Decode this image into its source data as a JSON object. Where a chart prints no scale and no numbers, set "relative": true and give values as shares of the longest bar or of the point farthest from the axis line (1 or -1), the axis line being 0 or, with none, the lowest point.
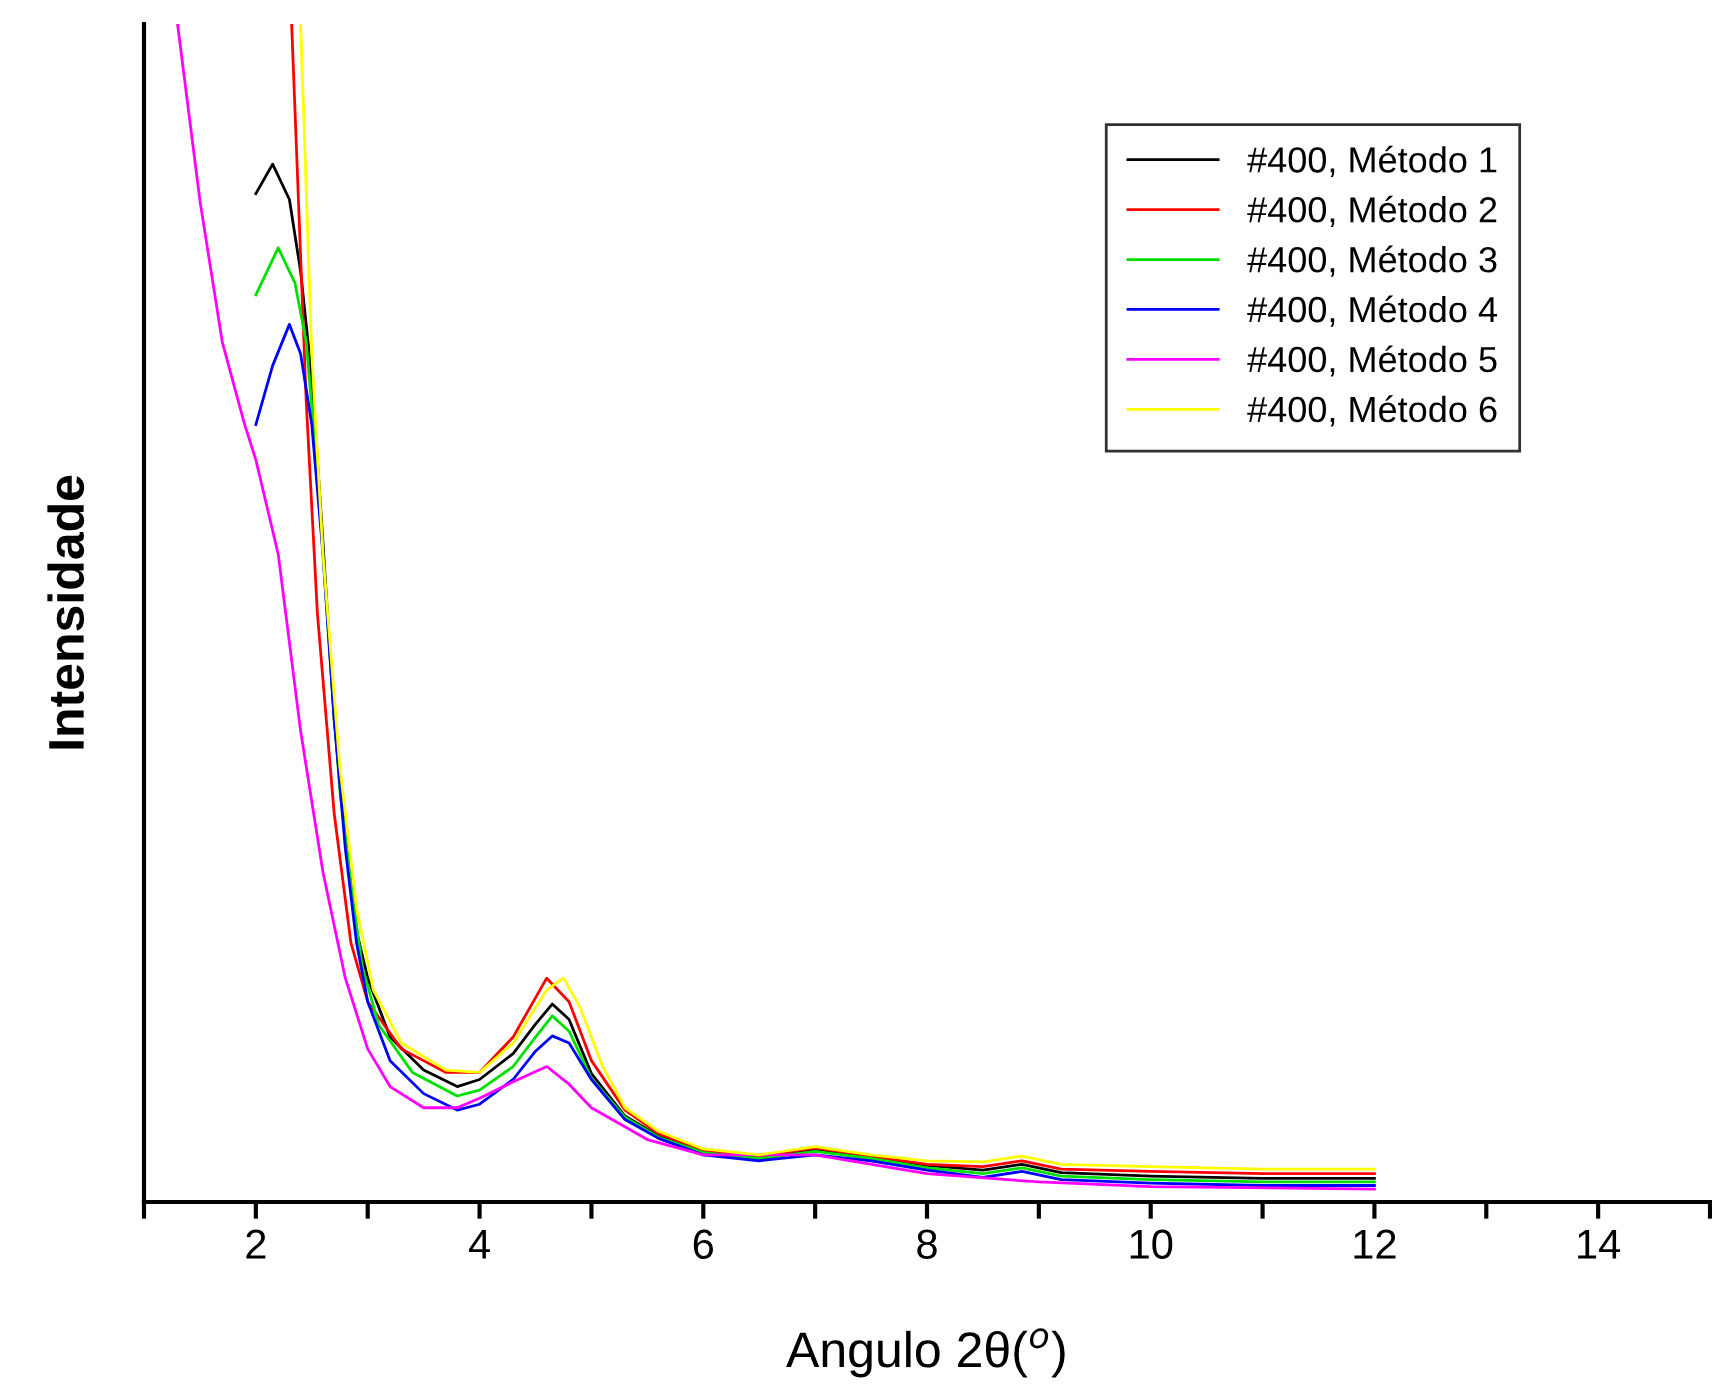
{
  "chart_data": {
    "type": "line",
    "xlabel": "Angulo 2θ($^{o}$)",
    "ylabel": "Intensidade",
    "relative": true,
    "xlim": [
      1,
      15
    ],
    "xticks": [
      {
        "value": 1,
        "label": null
      },
      2,
      {
        "value": 3,
        "label": null
      },
      4,
      {
        "value": 5,
        "label": null
      },
      6,
      {
        "value": 7,
        "label": null
      },
      8,
      {
        "value": 9,
        "label": null
      },
      10,
      {
        "value": 11,
        "label": null
      },
      12,
      {
        "value": 13,
        "label": null
      },
      14,
      {
        "value": 15,
        "label": null
      }
    ],
    "legend": "top right",
    "grid": false,
    "series": [
      {
        "name": "#400, Método 1",
        "color": "#000000",
        "x": [
          2.0,
          2.15,
          2.3,
          2.4,
          2.5,
          2.6,
          2.7,
          2.8,
          2.9,
          3.0,
          3.2,
          3.5,
          3.8,
          4.0,
          4.3,
          4.5,
          4.65,
          4.8,
          5.0,
          5.3,
          5.6,
          6.0,
          6.5,
          7.0,
          7.5,
          8.0,
          8.5,
          8.85,
          9.2,
          10,
          11,
          12
        ],
        "values": [
          0.856,
          0.881,
          0.851,
          0.79,
          0.7,
          0.56,
          0.41,
          0.31,
          0.23,
          0.19,
          0.14,
          0.112,
          0.098,
          0.104,
          0.126,
          0.151,
          0.168,
          0.155,
          0.109,
          0.073,
          0.056,
          0.042,
          0.037,
          0.044,
          0.037,
          0.031,
          0.027,
          0.032,
          0.025,
          0.022,
          0.02,
          0.02
        ]
      },
      {
        "name": "#400, Método 2",
        "color": "#ff0000",
        "x": [
          2.32,
          2.45,
          2.55,
          2.7,
          2.85,
          3.0,
          3.3,
          3.7,
          4.0,
          4.3,
          4.6,
          4.8,
          5.0,
          5.3,
          5.6,
          6.0,
          6.5,
          7.0,
          7.5,
          8.0,
          8.5,
          8.85,
          9.2,
          10,
          11,
          12
        ],
        "values": [
          1.0,
          0.68,
          0.5,
          0.33,
          0.22,
          0.17,
          0.13,
          0.11,
          0.11,
          0.14,
          0.19,
          0.17,
          0.12,
          0.078,
          0.058,
          0.044,
          0.039,
          0.046,
          0.039,
          0.032,
          0.03,
          0.035,
          0.028,
          0.026,
          0.024,
          0.024
        ]
      },
      {
        "name": "#400, Método 3",
        "color": "#00e000",
        "x": [
          2.0,
          2.2,
          2.35,
          2.45,
          2.55,
          2.65,
          2.75,
          2.85,
          2.95,
          3.1,
          3.4,
          3.8,
          4.0,
          4.3,
          4.5,
          4.65,
          4.8,
          5.0,
          5.3,
          5.6,
          6.0,
          6.5,
          7.0,
          7.5,
          8.0,
          8.5,
          8.85,
          9.2,
          10,
          11,
          12
        ],
        "values": [
          0.77,
          0.81,
          0.78,
          0.73,
          0.62,
          0.48,
          0.35,
          0.27,
          0.2,
          0.15,
          0.11,
          0.09,
          0.095,
          0.115,
          0.14,
          0.158,
          0.145,
          0.105,
          0.072,
          0.055,
          0.042,
          0.037,
          0.043,
          0.037,
          0.029,
          0.024,
          0.029,
          0.022,
          0.019,
          0.017,
          0.017
        ]
      },
      {
        "name": "#400, Método 4",
        "color": "#0000ff",
        "x": [
          2.0,
          2.15,
          2.3,
          2.4,
          2.5,
          2.6,
          2.7,
          2.8,
          2.9,
          3.0,
          3.2,
          3.5,
          3.8,
          4.0,
          4.3,
          4.5,
          4.65,
          4.8,
          5.0,
          5.3,
          5.6,
          6.0,
          6.5,
          7.0,
          7.5,
          8.0,
          8.5,
          8.85,
          9.2,
          10,
          11,
          12
        ],
        "values": [
          0.66,
          0.71,
          0.745,
          0.72,
          0.66,
          0.55,
          0.41,
          0.3,
          0.22,
          0.17,
          0.12,
          0.092,
          0.078,
          0.083,
          0.104,
          0.128,
          0.141,
          0.135,
          0.104,
          0.07,
          0.054,
          0.04,
          0.035,
          0.04,
          0.035,
          0.027,
          0.021,
          0.026,
          0.019,
          0.016,
          0.014,
          0.014
        ]
      },
      {
        "name": "#400, Método 5",
        "color": "#ff00ff",
        "x": [
          1.3,
          1.5,
          1.7,
          1.9,
          2.0,
          2.2,
          2.4,
          2.6,
          2.8,
          3.0,
          3.2,
          3.5,
          3.8,
          4.0,
          4.3,
          4.6,
          4.8,
          5.0,
          5.5,
          6.0,
          7.0,
          8.0,
          9.0,
          10,
          12
        ],
        "values": [
          1.0,
          0.85,
          0.73,
          0.66,
          0.63,
          0.55,
          0.4,
          0.28,
          0.19,
          0.13,
          0.098,
          0.08,
          0.08,
          0.088,
          0.102,
          0.115,
          0.1,
          0.08,
          0.053,
          0.04,
          0.04,
          0.024,
          0.017,
          0.013,
          0.011
        ]
      },
      {
        "name": "#400, Método 6",
        "color": "#ffff00",
        "x": [
          2.4,
          2.5,
          2.6,
          2.75,
          2.9,
          3.05,
          3.3,
          3.7,
          4.0,
          4.3,
          4.6,
          4.75,
          4.9,
          5.1,
          5.3,
          5.6,
          6.0,
          6.5,
          7.0,
          7.5,
          8.0,
          8.5,
          8.85,
          9.2,
          10,
          11,
          12
        ],
        "values": [
          1.0,
          0.72,
          0.55,
          0.37,
          0.25,
          0.18,
          0.135,
          0.112,
          0.11,
          0.135,
          0.18,
          0.19,
          0.165,
          0.115,
          0.08,
          0.06,
          0.045,
          0.04,
          0.047,
          0.04,
          0.035,
          0.034,
          0.039,
          0.032,
          0.03,
          0.028,
          0.028
        ]
      }
    ]
  }
}
